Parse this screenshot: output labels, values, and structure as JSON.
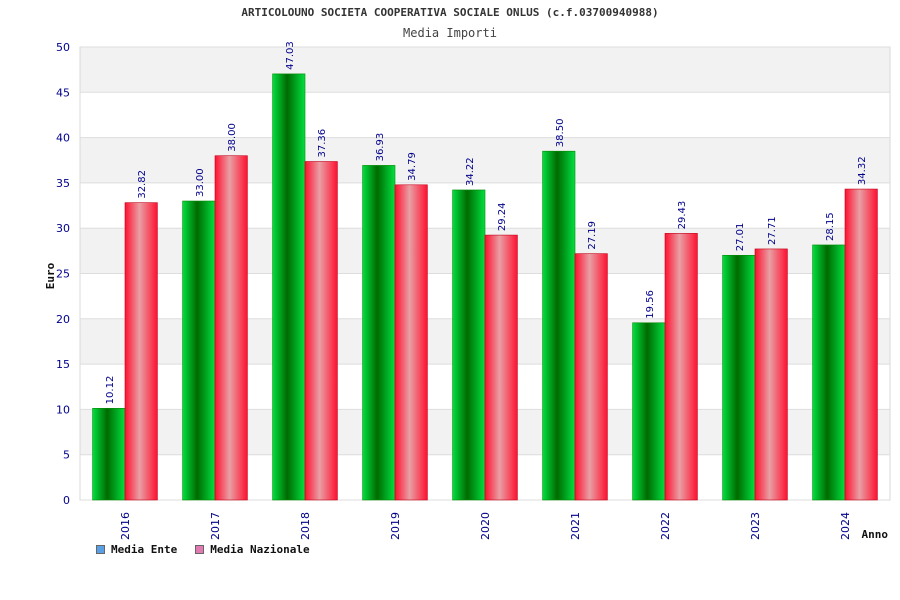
{
  "colors": {
    "ente": "#00b000",
    "nazionale": "#ee1122",
    "legend_ente": "#5aa0e6",
    "legend_nazionale": "#e07ab0",
    "label_text": "#00008b",
    "axis_tick_text": "#00008b"
  },
  "chart_data": {
    "type": "bar",
    "title": "ARTICOLOUNO SOCIETA COOPERATIVA SOCIALE ONLUS (c.f.03700940988)",
    "subtitle": "Media Importi",
    "xlabel": "Anno",
    "ylabel": "Euro",
    "ylim": [
      0,
      50
    ],
    "yticks": [
      "0",
      "5",
      "10",
      "15",
      "20",
      "25",
      "30",
      "35",
      "40",
      "45",
      "50"
    ],
    "categories": [
      "2016",
      "2017",
      "2018",
      "2019",
      "2020",
      "2021",
      "2022",
      "2023",
      "2024"
    ],
    "series": [
      {
        "name": "Media Ente",
        "values": [
          10.12,
          33.0,
          47.03,
          36.93,
          34.22,
          38.5,
          19.56,
          27.01,
          28.15
        ],
        "labels": [
          "10.12",
          "33.00",
          "47.03",
          "36.93",
          "34.22",
          "38.50",
          "19.56",
          "27.01",
          "28.15"
        ]
      },
      {
        "name": "Media Nazionale",
        "values": [
          32.82,
          38.0,
          37.36,
          34.79,
          29.24,
          27.19,
          29.43,
          27.71,
          34.32
        ],
        "labels": [
          "32.82",
          "38.00",
          "37.36",
          "34.79",
          "29.24",
          "27.19",
          "29.43",
          "27.71",
          "34.32"
        ]
      }
    ],
    "grid": true,
    "legend_position": "bottom-left"
  }
}
